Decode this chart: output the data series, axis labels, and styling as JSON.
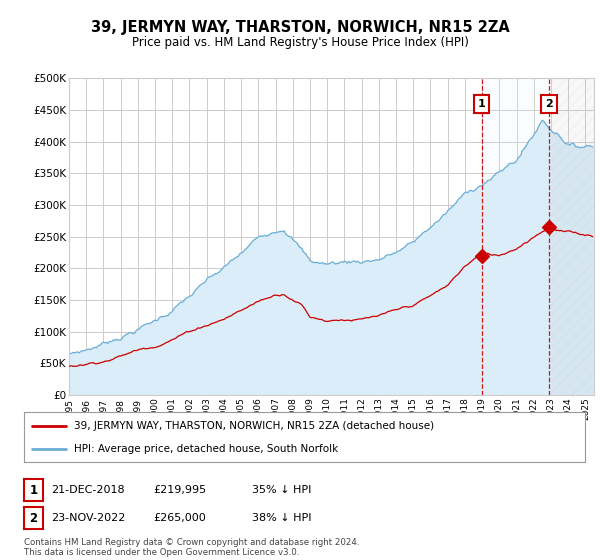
{
  "title": "39, JERMYN WAY, THARSTON, NORWICH, NR15 2ZA",
  "subtitle": "Price paid vs. HM Land Registry's House Price Index (HPI)",
  "hpi_color": "#6baed6",
  "price_color": "#cc0000",
  "dashed_line_color": "#cc0000",
  "background_color": "#ffffff",
  "grid_color": "#cccccc",
  "hpi_fill_color": "#daedf8",
  "ylim": [
    0,
    500000
  ],
  "yticks": [
    0,
    50000,
    100000,
    150000,
    200000,
    250000,
    300000,
    350000,
    400000,
    450000,
    500000
  ],
  "sale1": {
    "date": "21-DEC-2018",
    "price": 219995,
    "label": "1",
    "year": 2018.97
  },
  "sale2": {
    "date": "23-NOV-2022",
    "price": 265000,
    "label": "2",
    "year": 2022.9
  },
  "legend_entry1": "39, JERMYN WAY, THARSTON, NORWICH, NR15 2ZA (detached house)",
  "legend_entry2": "HPI: Average price, detached house, South Norfolk",
  "footer": "Contains HM Land Registry data © Crown copyright and database right 2024.\nThis data is licensed under the Open Government Licence v3.0.",
  "xmin": 1995.0,
  "xmax": 2025.5,
  "hatch_start": 2023.0
}
